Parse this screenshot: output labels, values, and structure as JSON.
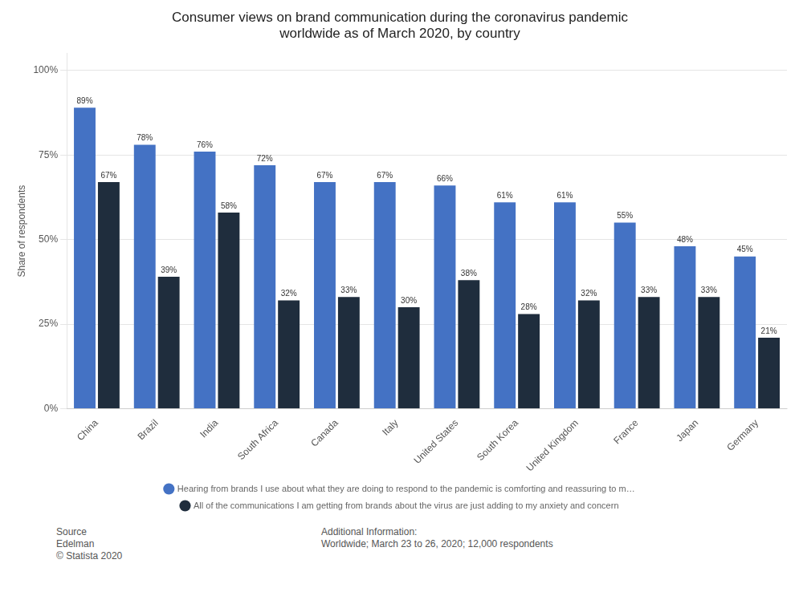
{
  "chart_data": {
    "type": "bar",
    "title": "Consumer views on brand communication during the coronavirus pandemic\nworldwide as of March 2020, by country",
    "categories": [
      "China",
      "Brazil",
      "India",
      "South Africa",
      "Canada",
      "Italy",
      "United States",
      "South Korea",
      "United Kingdom",
      "France",
      "Japan",
      "Germany"
    ],
    "series": [
      {
        "name": "Hearing from brands I use about what they are doing to respond to the pandemic is comforting and reassuring to m…",
        "color": "#4472C4",
        "values": [
          89,
          78,
          76,
          72,
          67,
          67,
          66,
          61,
          61,
          55,
          48,
          45
        ],
        "value_labels": [
          "89%",
          "78%",
          "76%",
          "72%",
          "67%",
          "67%",
          "66%",
          "61%",
          "61%",
          "55%",
          "48%",
          "45%"
        ]
      },
      {
        "name": "All of the communications I am getting from brands about the virus are just adding to my anxiety and concern",
        "color": "#1F2D3D",
        "values": [
          67,
          39,
          58,
          32,
          33,
          30,
          38,
          28,
          32,
          33,
          33,
          21
        ],
        "value_labels": [
          "67%",
          "39%",
          "58%",
          "32%",
          "33%",
          "30%",
          "38%",
          "28%",
          "32%",
          "33%",
          "33%",
          "21%"
        ]
      }
    ],
    "ylabel": "Share of respondents",
    "ylim": [
      0,
      105
    ],
    "yticks": [
      {
        "value": 0,
        "label": "0%"
      },
      {
        "value": 25,
        "label": "25%"
      },
      {
        "value": 50,
        "label": "50%"
      },
      {
        "value": 75,
        "label": "75%"
      },
      {
        "value": 100,
        "label": "100%"
      }
    ],
    "grid": true,
    "legend": "bottom",
    "data_labels": true,
    "annotations": [
      "Source\nEdelman\n© Statista 2020",
      "Additional Information:\nWorldwide; March 23 to 26, 2020; 12,000 respondents"
    ]
  }
}
